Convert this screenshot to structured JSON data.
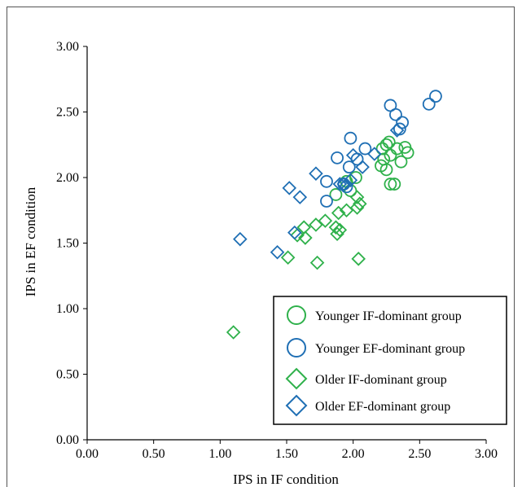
{
  "chart_data": {
    "type": "scatter",
    "title": "",
    "xlabel": "IPS in IF condition",
    "ylabel": "IPS in EF condition",
    "xlim": [
      0,
      3
    ],
    "ylim": [
      0,
      3
    ],
    "x_ticks": [
      "0.00",
      "0.50",
      "1.00",
      "1.50",
      "2.00",
      "2.50",
      "3.00"
    ],
    "y_ticks": [
      "0.00",
      "0.50",
      "1.00",
      "1.50",
      "2.00",
      "2.50",
      "3.00"
    ],
    "grid": false,
    "legend_position": "bottom-right",
    "series": [
      {
        "name": "Younger IF-dominant group",
        "marker": "circle",
        "color": "#2fb14b",
        "points": [
          [
            2.27,
            2.27
          ],
          [
            2.25,
            2.25
          ],
          [
            2.22,
            2.22
          ],
          [
            2.33,
            2.22
          ],
          [
            2.39,
            2.23
          ],
          [
            2.41,
            2.19
          ],
          [
            2.28,
            2.17
          ],
          [
            2.23,
            2.14
          ],
          [
            2.36,
            2.12
          ],
          [
            2.21,
            2.09
          ],
          [
            2.25,
            2.06
          ],
          [
            2.02,
            2.0
          ],
          [
            1.95,
            1.97
          ],
          [
            2.28,
            1.95
          ],
          [
            2.31,
            1.95
          ],
          [
            1.98,
            1.9
          ],
          [
            1.87,
            1.87
          ]
        ]
      },
      {
        "name": "Younger EF-dominant group",
        "marker": "circle",
        "color": "#1f6fb4",
        "points": [
          [
            2.62,
            2.62
          ],
          [
            2.57,
            2.56
          ],
          [
            2.28,
            2.55
          ],
          [
            2.32,
            2.48
          ],
          [
            2.37,
            2.42
          ],
          [
            2.35,
            2.37
          ],
          [
            1.98,
            2.3
          ],
          [
            2.09,
            2.22
          ],
          [
            1.88,
            2.15
          ],
          [
            2.03,
            2.14
          ],
          [
            1.97,
            2.08
          ],
          [
            1.8,
            1.97
          ],
          [
            1.93,
            1.95
          ],
          [
            1.95,
            1.93
          ],
          [
            1.8,
            1.82
          ]
        ]
      },
      {
        "name": "Older IF-dominant group",
        "marker": "diamond",
        "color": "#2fb14b",
        "points": [
          [
            2.03,
            1.85
          ],
          [
            2.05,
            1.8
          ],
          [
            2.03,
            1.77
          ],
          [
            1.95,
            1.75
          ],
          [
            1.89,
            1.73
          ],
          [
            1.79,
            1.67
          ],
          [
            1.72,
            1.64
          ],
          [
            1.63,
            1.62
          ],
          [
            1.87,
            1.62
          ],
          [
            1.9,
            1.6
          ],
          [
            1.88,
            1.57
          ],
          [
            1.58,
            1.56
          ],
          [
            1.64,
            1.54
          ],
          [
            1.51,
            1.39
          ],
          [
            1.73,
            1.35
          ],
          [
            2.04,
            1.38
          ],
          [
            1.1,
            0.82
          ]
        ]
      },
      {
        "name": "Older EF-dominant group",
        "marker": "diamond",
        "color": "#1f6fb4",
        "points": [
          [
            2.33,
            2.36
          ],
          [
            2.16,
            2.18
          ],
          [
            2.0,
            2.17
          ],
          [
            2.07,
            2.08
          ],
          [
            1.72,
            2.03
          ],
          [
            1.98,
            1.98
          ],
          [
            1.9,
            1.95
          ],
          [
            1.93,
            1.95
          ],
          [
            1.52,
            1.92
          ],
          [
            1.6,
            1.85
          ],
          [
            1.56,
            1.58
          ],
          [
            1.15,
            1.53
          ],
          [
            1.43,
            1.43
          ]
        ]
      }
    ]
  }
}
